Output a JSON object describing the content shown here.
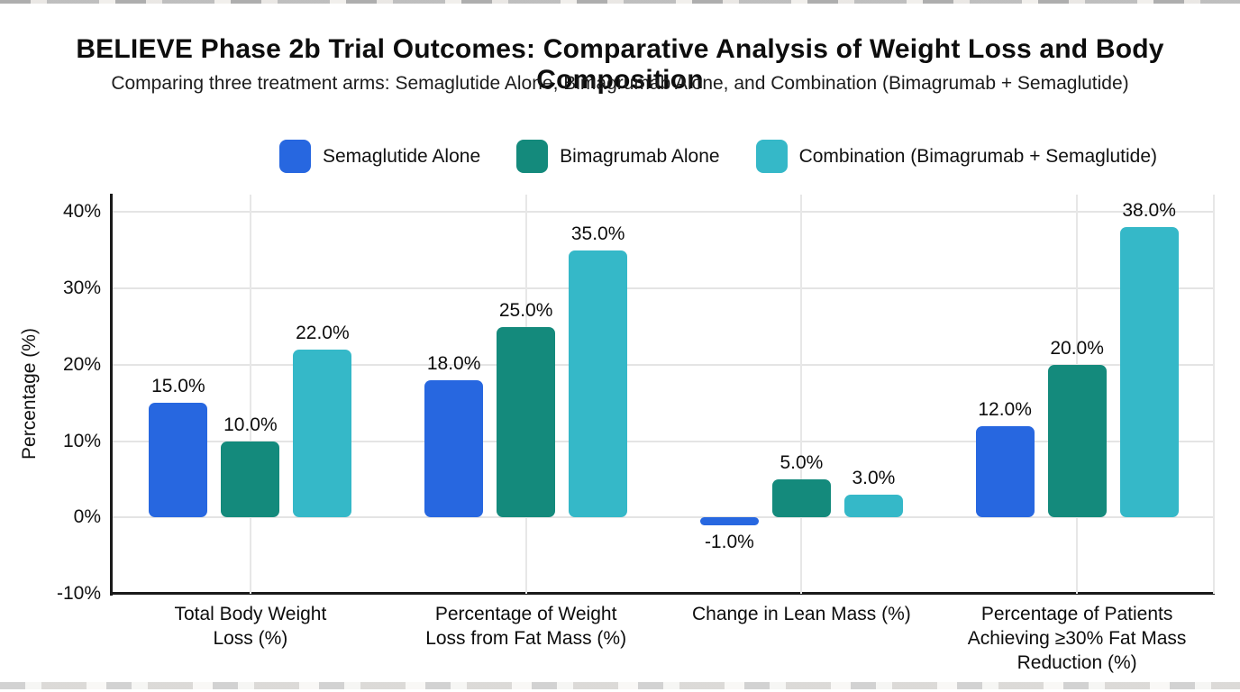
{
  "chart_data": {
    "type": "bar",
    "title": "BELIEVE Phase 2b Trial Outcomes: Comparative Analysis of Weight Loss and Body Composition",
    "subtitle": "Comparing three treatment arms: Semaglutide Alone, Bimagrumab Alone, and Combination (Bimagrumab + Semaglutide)",
    "categories": [
      "Total Body Weight Loss (%)",
      "Percentage of Weight Loss from Fat Mass (%)",
      "Change in Lean Mass (%)",
      "Percentage of Patients Achieving ≥30% Fat Mass Reduction (%)"
    ],
    "category_lines": [
      [
        "Total Body Weight",
        "Loss (%)"
      ],
      [
        "Percentage of Weight",
        "Loss from Fat Mass (%)"
      ],
      [
        "Change in Lean Mass (%)"
      ],
      [
        "Percentage of Patients",
        "Achieving ≥30% Fat Mass",
        "Reduction (%)"
      ]
    ],
    "series": [
      {
        "name": "Semaglutide Alone",
        "color": "#2767e0",
        "values": [
          15.0,
          18.0,
          -1.0,
          12.0
        ]
      },
      {
        "name": "Bimagrumab Alone",
        "color": "#148a7c",
        "values": [
          10.0,
          25.0,
          5.0,
          20.0
        ]
      },
      {
        "name": "Combination (Bimagrumab + Semaglutide)",
        "color": "#35b8c8",
        "values": [
          22.0,
          35.0,
          3.0,
          38.0
        ]
      }
    ],
    "value_labels": [
      [
        "15.0%",
        "18.0%",
        "-1.0%",
        "12.0%"
      ],
      [
        "10.0%",
        "25.0%",
        "5.0%",
        "20.0%"
      ],
      [
        "22.0%",
        "35.0%",
        "3.0%",
        "38.0%"
      ]
    ],
    "xlabel": "",
    "ylabel": "Percentage (%)",
    "yticks": [
      40,
      30,
      20,
      10,
      0,
      -10
    ],
    "ytick_labels": [
      "40%",
      "30%",
      "20%",
      "10%",
      "0%",
      "-10%"
    ],
    "ylim": [
      -10,
      42.3
    ],
    "grid": true,
    "legend_position": "top"
  },
  "style_colors": {
    "axis": "#1a1a1a",
    "gridline": "#e4e4e4",
    "text": "#0d0d0d",
    "background": "#ffffff"
  }
}
